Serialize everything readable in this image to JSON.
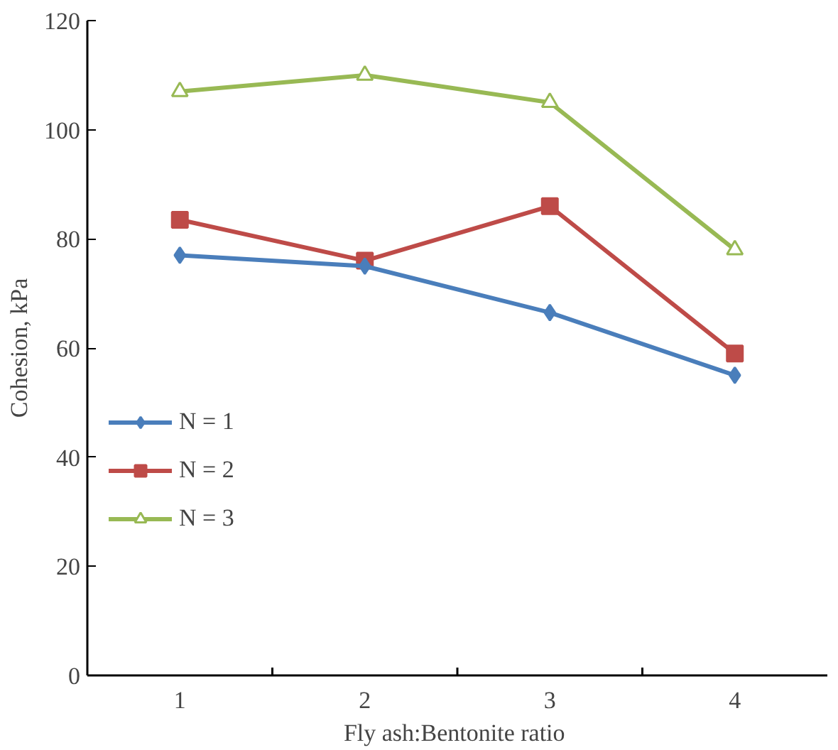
{
  "chart_data": {
    "type": "line",
    "xlabel": "Fly ash:Bentonite  ratio",
    "ylabel": "Cohesion, kPa",
    "categories": [
      "1",
      "2",
      "3",
      "4"
    ],
    "series": [
      {
        "name": "N = 1",
        "color": "#4a7ebb",
        "marker": "diamond",
        "values": [
          77,
          75,
          66.5,
          55
        ]
      },
      {
        "name": "N = 2",
        "color": "#be4b48",
        "marker": "square",
        "values": [
          83.5,
          76,
          86,
          59
        ]
      },
      {
        "name": "N = 3",
        "color": "#98b954",
        "marker": "triangle",
        "values": [
          107,
          110,
          105,
          78
        ]
      }
    ],
    "ylim": [
      0,
      120
    ],
    "yticks": [
      0,
      20,
      40,
      60,
      80,
      100,
      120
    ],
    "grid": false,
    "legend": "left",
    "line_style": "solid"
  }
}
